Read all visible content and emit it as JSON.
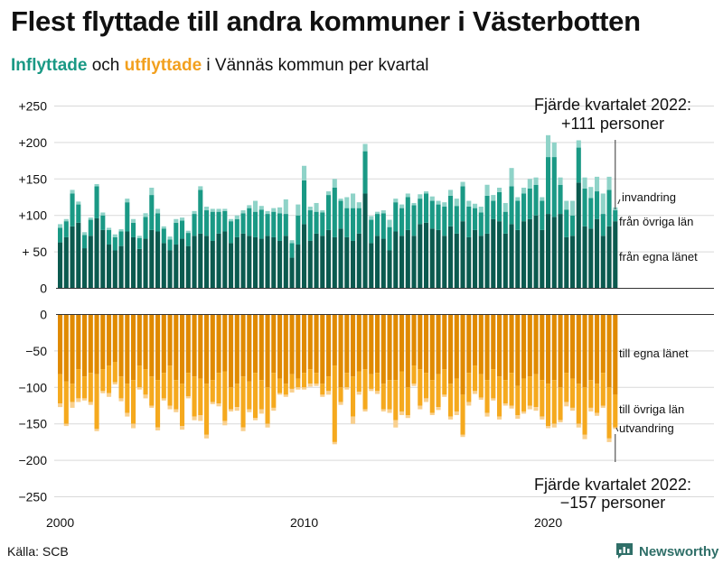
{
  "header": {
    "title": "Flest flyttade till andra kommuner i Västerbotten",
    "subtitle_in": "Inflyttade",
    "subtitle_mid": " och ",
    "subtitle_out": "utflyttade",
    "subtitle_rest": " i Vännäs kommun per kvartal"
  },
  "footer": {
    "source": "Källa: SCB",
    "brand": "Newsworthy"
  },
  "colors": {
    "in_own": "#0b5a4f",
    "in_other": "#1a9985",
    "in_immig": "#8fd3c8",
    "out_own": "#e08a00",
    "out_other": "#f5a91e",
    "out_emig": "#f9d08e",
    "grid": "#d9d9d9",
    "axis": "#333333",
    "text": "#111111",
    "brand": "#2f6f68"
  },
  "chart_data": {
    "type": "bar",
    "stacked": true,
    "title": "Flest flyttade till andra kommuner i Västerbotten",
    "subtitle": "Inflyttade och utflyttade i Vännäs kommun per kvartal",
    "x_unit": "quarter",
    "x_start": "2000 Q1",
    "x_ticks": [
      {
        "quarter_index": 0,
        "label": "2000"
      },
      {
        "quarter_index": 40,
        "label": "2010"
      },
      {
        "quarter_index": 80,
        "label": "2020"
      }
    ],
    "y_ticks_top": [
      {
        "value": 250,
        "label": "+250"
      },
      {
        "value": 200,
        "label": "+200"
      },
      {
        "value": 150,
        "label": "+150"
      },
      {
        "value": 100,
        "label": "+100"
      },
      {
        "value": 50,
        "label": "+ 50"
      },
      {
        "value": 0,
        "label": "0"
      }
    ],
    "y_ticks_bottom": [
      {
        "value": 0,
        "label": "0"
      },
      {
        "value": -50,
        "label": "−50"
      },
      {
        "value": -100,
        "label": "−100"
      },
      {
        "value": -150,
        "label": "−150"
      },
      {
        "value": -200,
        "label": "−200"
      },
      {
        "value": -250,
        "label": "−250"
      }
    ],
    "ylim_top": [
      0,
      250
    ],
    "ylim_bottom": [
      -250,
      0
    ],
    "series_top": [
      {
        "name": "från egna länet",
        "values": [
          63,
          70,
          85,
          90,
          55,
          72,
          96,
          80,
          60,
          52,
          58,
          78,
          70,
          54,
          68,
          80,
          78,
          62,
          52,
          60,
          68,
          58,
          72,
          75,
          72,
          65,
          75,
          78,
          62,
          70,
          75,
          72,
          70,
          68,
          72,
          70,
          65,
          72,
          42,
          60,
          88,
          65,
          75,
          72,
          80,
          70,
          82,
          70,
          65,
          75,
          130,
          62,
          72,
          68,
          52,
          78,
          72,
          80,
          72,
          88,
          90,
          82,
          80,
          72,
          85,
          75,
          92,
          70,
          80,
          72,
          75,
          95,
          92,
          75,
          88,
          80,
          92,
          95,
          100,
          80,
          102,
          98,
          102,
          70,
          72,
          145,
          85,
          82,
          95,
          72,
          85,
          92
        ]
      },
      {
        "name": "från övriga län",
        "values": [
          20,
          22,
          45,
          25,
          18,
          22,
          44,
          20,
          20,
          18,
          20,
          40,
          20,
          15,
          30,
          48,
          25,
          20,
          15,
          30,
          25,
          18,
          30,
          60,
          35,
          40,
          30,
          28,
          30,
          25,
          28,
          38,
          35,
          40,
          30,
          35,
          38,
          30,
          20,
          40,
          60,
          42,
          30,
          32,
          48,
          68,
          38,
          40,
          45,
          35,
          58,
          32,
          30,
          35,
          32,
          40,
          38,
          45,
          42,
          35,
          40,
          38,
          35,
          40,
          42,
          38,
          48,
          42,
          30,
          32,
          52,
          25,
          40,
          30,
          52,
          40,
          38,
          42,
          42,
          40,
          78,
          82,
          40,
          38,
          28,
          48,
          52,
          42,
          38,
          30,
          50,
          15
        ]
      },
      {
        "name": "invandring",
        "values": [
          5,
          3,
          5,
          4,
          4,
          3,
          3,
          4,
          3,
          4,
          3,
          5,
          5,
          3,
          5,
          10,
          6,
          3,
          4,
          5,
          4,
          3,
          4,
          5,
          5,
          4,
          4,
          3,
          3,
          5,
          4,
          4,
          15,
          5,
          4,
          5,
          8,
          20,
          4,
          15,
          20,
          5,
          12,
          3,
          5,
          12,
          3,
          15,
          20,
          8,
          10,
          5,
          3,
          4,
          10,
          5,
          5,
          5,
          3,
          6,
          3,
          6,
          5,
          6,
          8,
          10,
          6,
          8,
          6,
          8,
          15,
          8,
          6,
          12,
          25,
          5,
          8,
          13,
          10,
          5,
          30,
          20,
          10,
          12,
          20,
          10,
          15,
          15,
          20,
          28,
          18,
          4
        ]
      }
    ],
    "series_bottom": [
      {
        "name": "till egna länet",
        "values": [
          -82,
          -92,
          -95,
          -75,
          -85,
          -80,
          -82,
          -75,
          -70,
          -65,
          -85,
          -95,
          -90,
          -70,
          -75,
          -85,
          -90,
          -80,
          -70,
          -90,
          -95,
          -80,
          -85,
          -88,
          -95,
          -90,
          -80,
          -78,
          -100,
          -95,
          -85,
          -92,
          -80,
          -90,
          -100,
          -80,
          -88,
          -95,
          -82,
          -88,
          -80,
          -75,
          -80,
          -95,
          -85,
          -70,
          -100,
          -80,
          -85,
          -78,
          -75,
          -82,
          -80,
          -95,
          -90,
          -90,
          -78,
          -100,
          -70,
          -75,
          -80,
          -90,
          -82,
          -75,
          -95,
          -88,
          -110,
          -80,
          -70,
          -82,
          -90,
          -75,
          -85,
          -90,
          -80,
          -98,
          -88,
          -85,
          -82,
          -90,
          -95,
          -90,
          -100,
          -80,
          -88,
          -95,
          -100,
          -90,
          -95,
          -80,
          -100,
          -110
        ]
      },
      {
        "name": "till övriga län",
        "values": [
          -40,
          -58,
          -25,
          -40,
          -30,
          -40,
          -75,
          -30,
          -38,
          -28,
          -30,
          -40,
          -60,
          -30,
          -35,
          -40,
          -65,
          -35,
          -55,
          -40,
          -58,
          -32,
          -55,
          -50,
          -70,
          -30,
          -42,
          -68,
          -30,
          -32,
          -70,
          -38,
          -62,
          -40,
          -50,
          -48,
          -20,
          -15,
          -20,
          -12,
          -20,
          -20,
          -15,
          -15,
          -20,
          -105,
          -20,
          -20,
          -55,
          -28,
          -55,
          -20,
          -25,
          -35,
          -40,
          -55,
          -55,
          -38,
          -25,
          -50,
          -35,
          -45,
          -45,
          -35,
          -45,
          -45,
          -55,
          -40,
          -35,
          -32,
          -45,
          -40,
          -55,
          -32,
          -45,
          -40,
          -45,
          -40,
          -45,
          -50,
          -58,
          -60,
          -45,
          -40,
          -40,
          -55,
          -65,
          -38,
          -40,
          -45,
          -70,
          -45
        ]
      },
      {
        "name": "utvandring",
        "values": [
          -5,
          -3,
          -8,
          -5,
          -3,
          -4,
          -3,
          -3,
          -5,
          -3,
          -4,
          -5,
          -6,
          -3,
          -5,
          -3,
          -4,
          -3,
          -5,
          -4,
          -5,
          -3,
          -5,
          -8,
          -5,
          -3,
          -4,
          -6,
          -3,
          -5,
          -5,
          -4,
          -3,
          -6,
          -5,
          -4,
          -2,
          -3,
          -5,
          -3,
          -3,
          -4,
          -3,
          -3,
          -5,
          -3,
          -4,
          -3,
          -10,
          -4,
          -3,
          -3,
          -4,
          -3,
          -5,
          -10,
          -5,
          -4,
          -3,
          -5,
          -5,
          -3,
          -4,
          -3,
          -4,
          -5,
          -3,
          -5,
          -4,
          -3,
          -5,
          -3,
          -4,
          -3,
          -4,
          -5,
          -3,
          -5,
          -5,
          -4,
          -3,
          -5,
          -3,
          -6,
          -4,
          -5,
          -6,
          -5,
          -4,
          -3,
          -5,
          -2
        ]
      }
    ],
    "annotation_top": {
      "line1": "Fjärde kvartalet 2022:",
      "line2": "+111 personer"
    },
    "annotation_bottom": {
      "line1": "Fjärde kvartalet 2022:",
      "line2": "−157 personer"
    },
    "legend_top": {
      "invandring": "invandring",
      "ovriga": "från övriga län",
      "egna": "från egna länet"
    },
    "legend_bottom": {
      "egna": "till egna länet",
      "ovriga": "till övriga län",
      "utvandring": "utvandring"
    }
  }
}
